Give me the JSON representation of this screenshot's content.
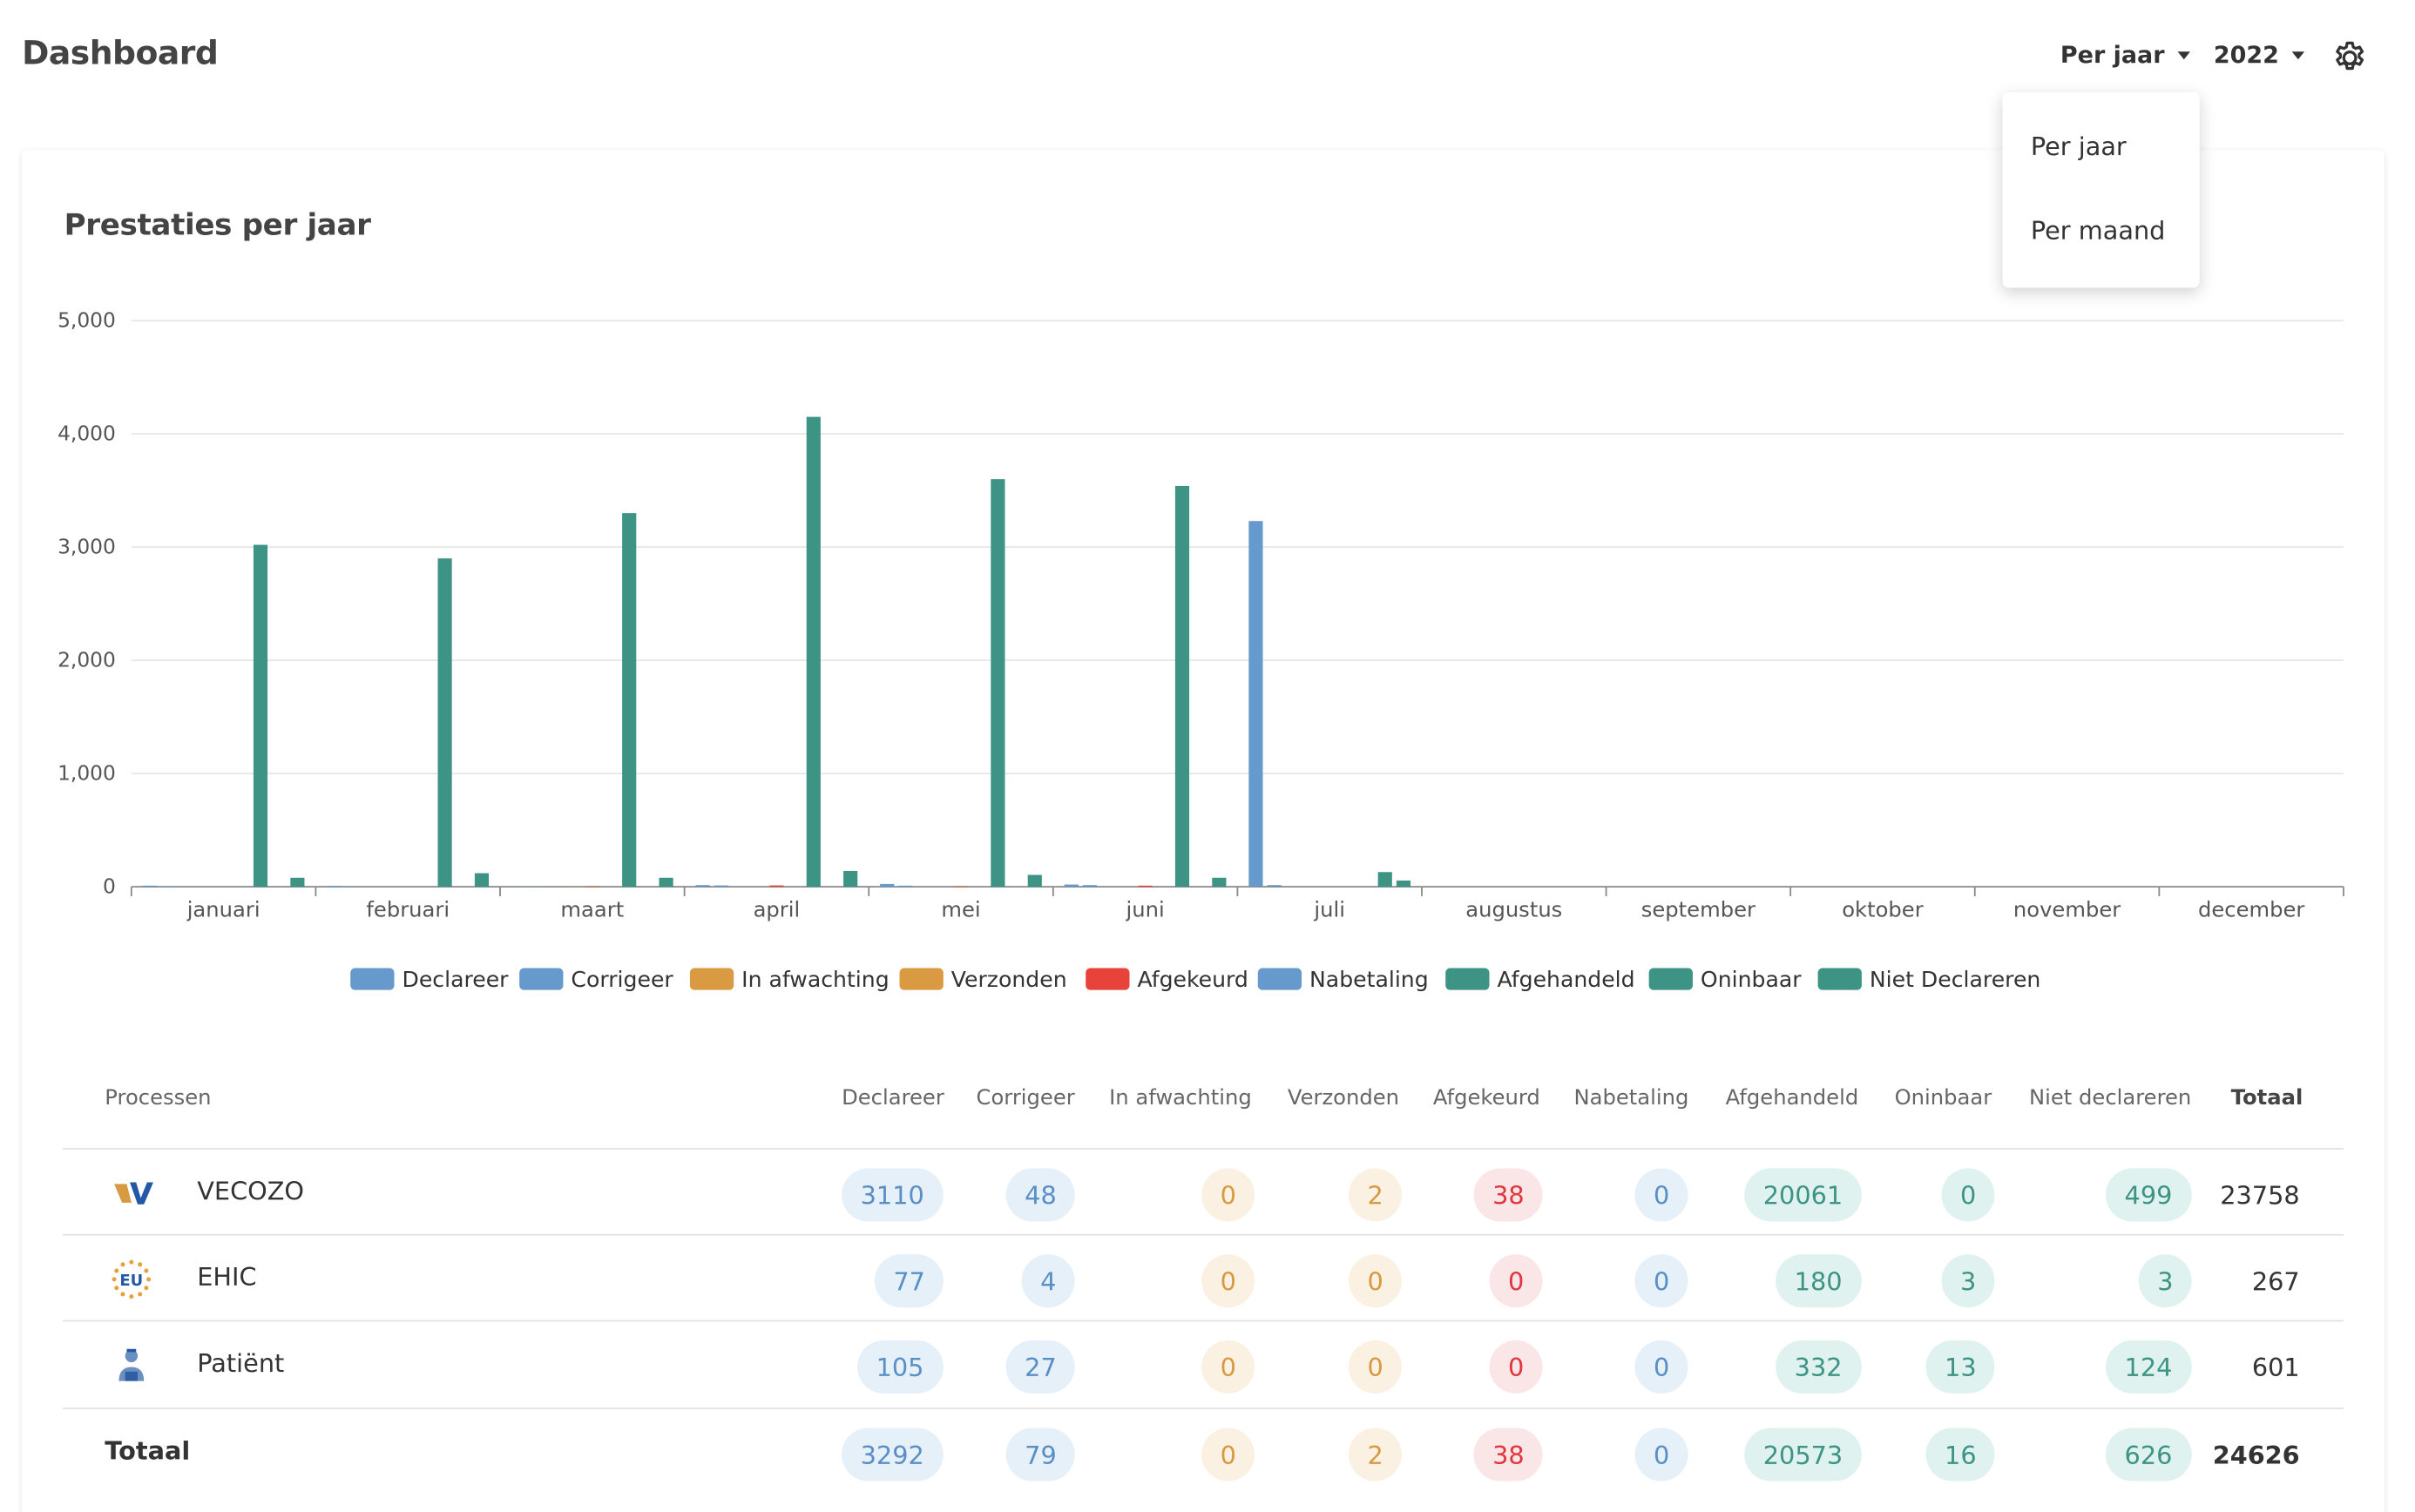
{
  "header": {
    "title": "Dashboard",
    "period_label": "Per jaar",
    "year_label": "2022"
  },
  "dropdown": {
    "items": [
      "Per jaar",
      "Per maand"
    ]
  },
  "card": {
    "title": "Prestaties per jaar"
  },
  "colors": {
    "blue": "#6699cc",
    "orange": "#d99a42",
    "red": "#e8433b",
    "teal": "#3d9485"
  },
  "chart_data": {
    "type": "bar",
    "categories": [
      "januari",
      "februari",
      "maart",
      "april",
      "mei",
      "juni",
      "juli",
      "augustus",
      "september",
      "oktober",
      "november",
      "december"
    ],
    "ylim": [
      0,
      5000
    ],
    "yticks": [
      "0",
      "1,000",
      "2,000",
      "3,000",
      "4,000",
      "5,000"
    ],
    "grid": true,
    "legend_position": "bottom",
    "series": [
      {
        "name": "Declareer",
        "color": "#6699cc",
        "values": [
          10,
          8,
          2,
          15,
          25,
          20,
          3230,
          0,
          0,
          0,
          0,
          0
        ]
      },
      {
        "name": "Corrigeer",
        "color": "#6699cc",
        "values": [
          4,
          2,
          2,
          12,
          10,
          15,
          15,
          0,
          0,
          0,
          0,
          0
        ]
      },
      {
        "name": "In afwachting",
        "color": "#d99a42",
        "values": [
          0,
          0,
          0,
          0,
          0,
          0,
          0,
          0,
          0,
          0,
          0,
          0
        ]
      },
      {
        "name": "Verzonden",
        "color": "#d99a42",
        "values": [
          0,
          0,
          2,
          0,
          0,
          0,
          0,
          0,
          0,
          0,
          0,
          0
        ]
      },
      {
        "name": "Afgekeurd",
        "color": "#e8433b",
        "values": [
          0,
          0,
          5,
          12,
          5,
          10,
          0,
          0,
          0,
          0,
          0,
          0
        ]
      },
      {
        "name": "Nabetaling",
        "color": "#6699cc",
        "values": [
          0,
          0,
          0,
          0,
          0,
          0,
          0,
          0,
          0,
          0,
          0,
          0
        ]
      },
      {
        "name": "Afgehandeld",
        "color": "#3d9485",
        "values": [
          3020,
          2900,
          3300,
          4150,
          3600,
          3540,
          0,
          0,
          0,
          0,
          0,
          0
        ]
      },
      {
        "name": "Oninbaar",
        "color": "#3d9485",
        "values": [
          0,
          0,
          0,
          0,
          0,
          0,
          130,
          0,
          0,
          0,
          0,
          0
        ]
      },
      {
        "name": "Niet Declareren",
        "color": "#3d9485",
        "values": [
          80,
          120,
          80,
          140,
          105,
          80,
          55,
          0,
          0,
          0,
          0,
          0
        ]
      }
    ]
  },
  "table": {
    "headers": [
      "Processen",
      "Declareer",
      "Corrigeer",
      "In afwachting",
      "Verzonden",
      "Afgekeurd",
      "Nabetaling",
      "Afgehandeld",
      "Oninbaar",
      "Niet declareren",
      "Totaal"
    ],
    "rows": [
      {
        "name": "VECOZO",
        "logo": "vecozo-logo",
        "values": [
          "3110",
          "48",
          "0",
          "2",
          "38",
          "0",
          "20061",
          "0",
          "499"
        ],
        "total": "23758"
      },
      {
        "name": "EHIC",
        "logo": "eu-logo",
        "values": [
          "77",
          "4",
          "0",
          "0",
          "0",
          "0",
          "180",
          "3",
          "3"
        ],
        "total": "267"
      },
      {
        "name": "Patiënt",
        "logo": "patient-icon",
        "values": [
          "105",
          "27",
          "0",
          "0",
          "0",
          "0",
          "332",
          "13",
          "124"
        ],
        "total": "601"
      }
    ],
    "footer": {
      "name": "Totaal",
      "values": [
        "3292",
        "79",
        "0",
        "2",
        "38",
        "0",
        "20573",
        "16",
        "626"
      ],
      "total": "24626"
    }
  }
}
